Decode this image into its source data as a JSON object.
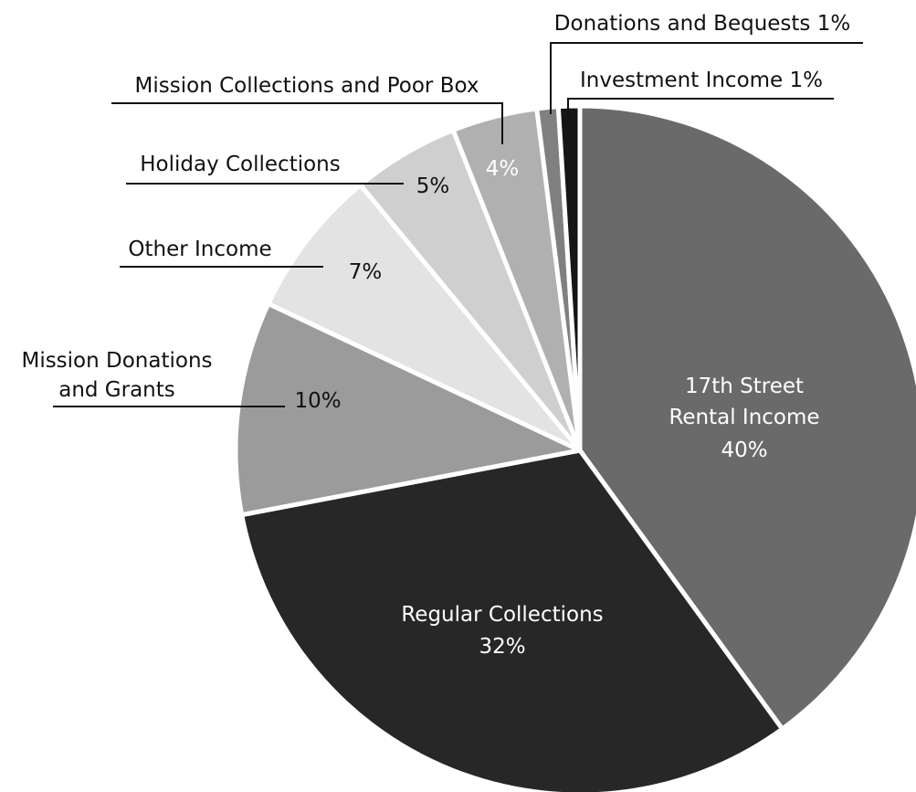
{
  "chart_data": {
    "type": "pie",
    "slices": [
      {
        "label": "17th Street Rental Income",
        "value": 40,
        "value_label": "40%",
        "color": "#6a6a6a"
      },
      {
        "label": "Regular Collections",
        "value": 32,
        "value_label": "32%",
        "color": "#272727"
      },
      {
        "label": "Mission Donations and Grants",
        "value": 10,
        "value_label": "10%",
        "color": "#9b9b9b"
      },
      {
        "label": "Other Income",
        "value": 7,
        "value_label": "7%",
        "color": "#e3e3e3"
      },
      {
        "label": "Holiday Collections",
        "value": 5,
        "value_label": "5%",
        "color": "#cfcfcf"
      },
      {
        "label": "Mission Collections and Poor Box",
        "value": 4,
        "value_label": "4%",
        "color": "#b0b0b0"
      },
      {
        "label": "Donations and Bequests",
        "value": 1,
        "value_label": "1%",
        "color": "#808080"
      },
      {
        "label": "Investment Income",
        "value": 1,
        "value_label": "1%",
        "color": "#161616"
      }
    ],
    "label_text": {
      "rental_line1": "17th Street",
      "rental_line2": "Rental Income",
      "rental_pct": "40%",
      "regular_name": "Regular Collections",
      "regular_pct": "32%",
      "mdg_line1": "Mission Donations",
      "mdg_line2": "and Grants",
      "mdg_pct": "10%",
      "other_name": "Other Income",
      "other_pct": "7%",
      "holiday_name": "Holiday Collections",
      "holiday_pct": "5%",
      "mcpb_name": "Mission Collections and Poor Box",
      "mcpb_pct": "4%",
      "donations_name": "Donations and Bequests 1%",
      "investment_name": "Investment Income 1%"
    }
  }
}
